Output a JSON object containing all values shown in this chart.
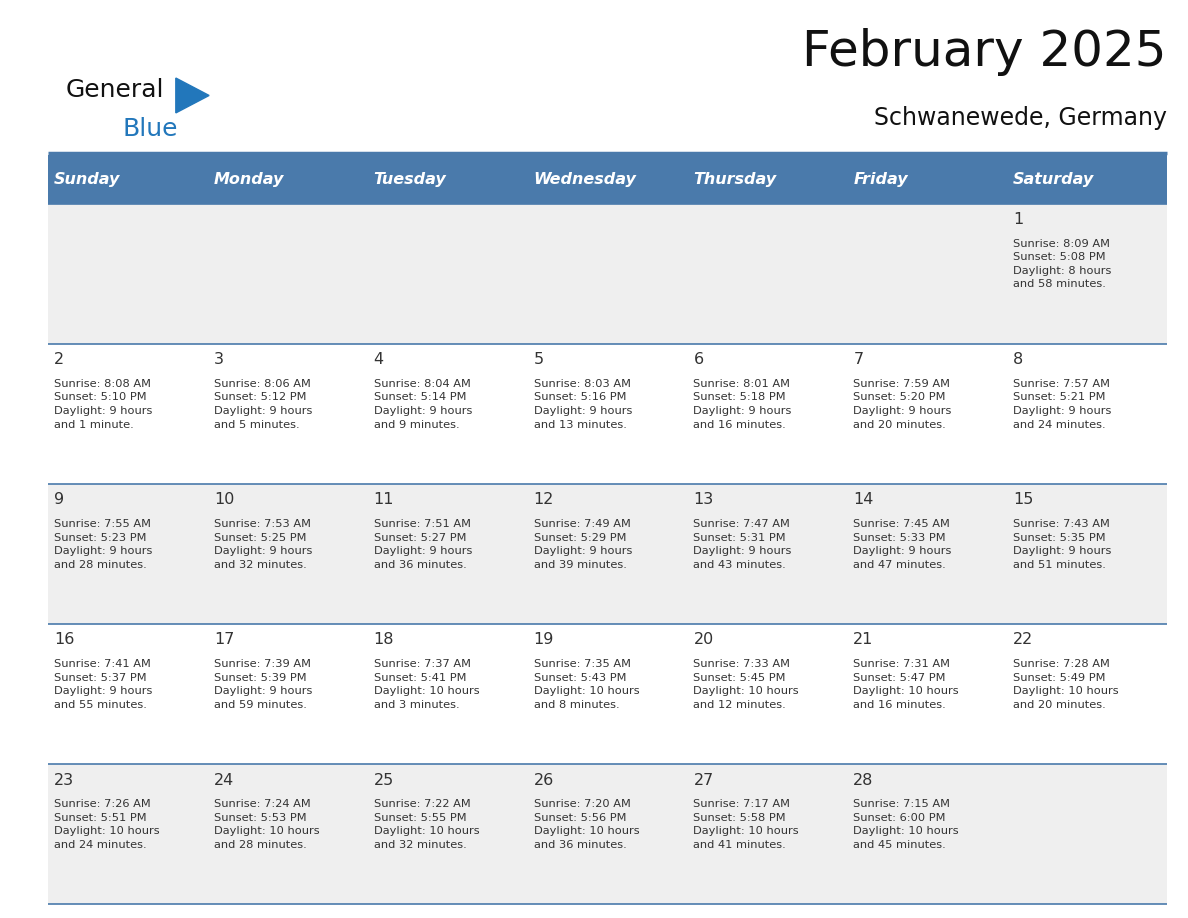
{
  "title": "February 2025",
  "subtitle": "Schwanewede, Germany",
  "days_of_week": [
    "Sunday",
    "Monday",
    "Tuesday",
    "Wednesday",
    "Thursday",
    "Friday",
    "Saturday"
  ],
  "header_bg": "#4a7aab",
  "header_text": "#ffffff",
  "row_bg_light": "#efefef",
  "row_bg_white": "#ffffff",
  "cell_border_color": "#4a7aab",
  "day_number_color": "#333333",
  "info_text_color": "#333333",
  "title_color": "#111111",
  "logo_general_color": "#111111",
  "logo_blue_color": "#2277bb",
  "logo_triangle_color": "#2277bb",
  "fig_width": 11.88,
  "fig_height": 9.18,
  "calendar_data": [
    [
      {
        "day": null,
        "info": null
      },
      {
        "day": null,
        "info": null
      },
      {
        "day": null,
        "info": null
      },
      {
        "day": null,
        "info": null
      },
      {
        "day": null,
        "info": null
      },
      {
        "day": null,
        "info": null
      },
      {
        "day": 1,
        "info": "Sunrise: 8:09 AM\nSunset: 5:08 PM\nDaylight: 8 hours\nand 58 minutes."
      }
    ],
    [
      {
        "day": 2,
        "info": "Sunrise: 8:08 AM\nSunset: 5:10 PM\nDaylight: 9 hours\nand 1 minute."
      },
      {
        "day": 3,
        "info": "Sunrise: 8:06 AM\nSunset: 5:12 PM\nDaylight: 9 hours\nand 5 minutes."
      },
      {
        "day": 4,
        "info": "Sunrise: 8:04 AM\nSunset: 5:14 PM\nDaylight: 9 hours\nand 9 minutes."
      },
      {
        "day": 5,
        "info": "Sunrise: 8:03 AM\nSunset: 5:16 PM\nDaylight: 9 hours\nand 13 minutes."
      },
      {
        "day": 6,
        "info": "Sunrise: 8:01 AM\nSunset: 5:18 PM\nDaylight: 9 hours\nand 16 minutes."
      },
      {
        "day": 7,
        "info": "Sunrise: 7:59 AM\nSunset: 5:20 PM\nDaylight: 9 hours\nand 20 minutes."
      },
      {
        "day": 8,
        "info": "Sunrise: 7:57 AM\nSunset: 5:21 PM\nDaylight: 9 hours\nand 24 minutes."
      }
    ],
    [
      {
        "day": 9,
        "info": "Sunrise: 7:55 AM\nSunset: 5:23 PM\nDaylight: 9 hours\nand 28 minutes."
      },
      {
        "day": 10,
        "info": "Sunrise: 7:53 AM\nSunset: 5:25 PM\nDaylight: 9 hours\nand 32 minutes."
      },
      {
        "day": 11,
        "info": "Sunrise: 7:51 AM\nSunset: 5:27 PM\nDaylight: 9 hours\nand 36 minutes."
      },
      {
        "day": 12,
        "info": "Sunrise: 7:49 AM\nSunset: 5:29 PM\nDaylight: 9 hours\nand 39 minutes."
      },
      {
        "day": 13,
        "info": "Sunrise: 7:47 AM\nSunset: 5:31 PM\nDaylight: 9 hours\nand 43 minutes."
      },
      {
        "day": 14,
        "info": "Sunrise: 7:45 AM\nSunset: 5:33 PM\nDaylight: 9 hours\nand 47 minutes."
      },
      {
        "day": 15,
        "info": "Sunrise: 7:43 AM\nSunset: 5:35 PM\nDaylight: 9 hours\nand 51 minutes."
      }
    ],
    [
      {
        "day": 16,
        "info": "Sunrise: 7:41 AM\nSunset: 5:37 PM\nDaylight: 9 hours\nand 55 minutes."
      },
      {
        "day": 17,
        "info": "Sunrise: 7:39 AM\nSunset: 5:39 PM\nDaylight: 9 hours\nand 59 minutes."
      },
      {
        "day": 18,
        "info": "Sunrise: 7:37 AM\nSunset: 5:41 PM\nDaylight: 10 hours\nand 3 minutes."
      },
      {
        "day": 19,
        "info": "Sunrise: 7:35 AM\nSunset: 5:43 PM\nDaylight: 10 hours\nand 8 minutes."
      },
      {
        "day": 20,
        "info": "Sunrise: 7:33 AM\nSunset: 5:45 PM\nDaylight: 10 hours\nand 12 minutes."
      },
      {
        "day": 21,
        "info": "Sunrise: 7:31 AM\nSunset: 5:47 PM\nDaylight: 10 hours\nand 16 minutes."
      },
      {
        "day": 22,
        "info": "Sunrise: 7:28 AM\nSunset: 5:49 PM\nDaylight: 10 hours\nand 20 minutes."
      }
    ],
    [
      {
        "day": 23,
        "info": "Sunrise: 7:26 AM\nSunset: 5:51 PM\nDaylight: 10 hours\nand 24 minutes."
      },
      {
        "day": 24,
        "info": "Sunrise: 7:24 AM\nSunset: 5:53 PM\nDaylight: 10 hours\nand 28 minutes."
      },
      {
        "day": 25,
        "info": "Sunrise: 7:22 AM\nSunset: 5:55 PM\nDaylight: 10 hours\nand 32 minutes."
      },
      {
        "day": 26,
        "info": "Sunrise: 7:20 AM\nSunset: 5:56 PM\nDaylight: 10 hours\nand 36 minutes."
      },
      {
        "day": 27,
        "info": "Sunrise: 7:17 AM\nSunset: 5:58 PM\nDaylight: 10 hours\nand 41 minutes."
      },
      {
        "day": 28,
        "info": "Sunrise: 7:15 AM\nSunset: 6:00 PM\nDaylight: 10 hours\nand 45 minutes."
      },
      {
        "day": null,
        "info": null
      }
    ]
  ]
}
